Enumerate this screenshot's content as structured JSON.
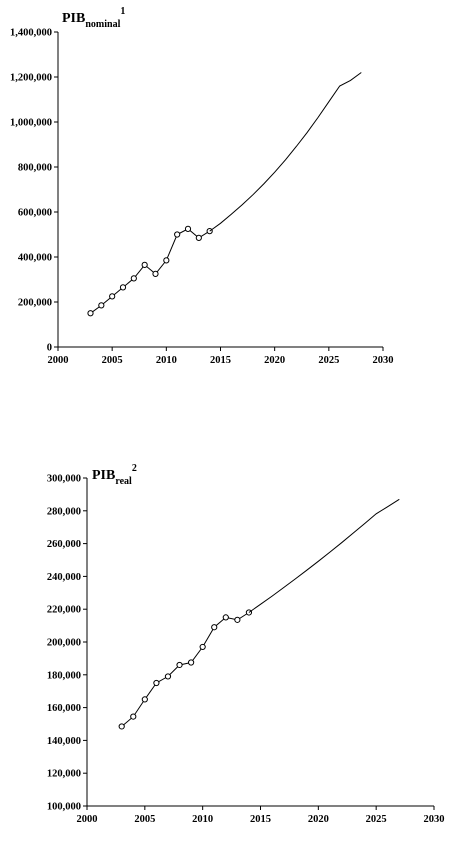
{
  "chart_data": [
    {
      "type": "line",
      "title": "PIB",
      "title_sub": "nominal",
      "title_sup": "1",
      "xlabel": "",
      "ylabel": "",
      "xlim": [
        2000,
        2030
      ],
      "ylim": [
        0,
        1400000
      ],
      "xticks": [
        2000,
        2005,
        2010,
        2015,
        2020,
        2025,
        2030
      ],
      "yticks": [
        0,
        200000,
        400000,
        600000,
        800000,
        1000000,
        1200000,
        1400000
      ],
      "xtick_labels": [
        "2000",
        "2005",
        "2010",
        "2015",
        "2020",
        "2025",
        "2030"
      ],
      "ytick_labels": [
        "0",
        "200,000",
        "400,000",
        "600,000",
        "800,000",
        "1,000,000",
        "1,200,000",
        "1,400,000"
      ],
      "grid": false,
      "series": [
        {
          "style": "line with open circle markers",
          "x": [
            2003,
            2004,
            2005,
            2006,
            2007,
            2008,
            2009,
            2010,
            2011,
            2012,
            2013,
            2014
          ],
          "y": [
            150000,
            185000,
            225000,
            265000,
            305000,
            365000,
            325000,
            385000,
            500000,
            525000,
            485000,
            515000
          ]
        },
        {
          "style": "line",
          "x": [
            2014,
            2015,
            2016,
            2017,
            2018,
            2019,
            2020,
            2021,
            2022,
            2023,
            2024,
            2025,
            2026,
            2027,
            2028
          ],
          "y": [
            515000,
            550000,
            590000,
            632000,
            677000,
            725000,
            777000,
            832000,
            891000,
            954000,
            1020000,
            1090000,
            1160000,
            1185000,
            1220000
          ]
        }
      ]
    },
    {
      "type": "line",
      "title": "PIB",
      "title_sub": "real",
      "title_sup": "2",
      "xlabel": "",
      "ylabel": "",
      "xlim": [
        2000,
        2030
      ],
      "ylim": [
        100000,
        300000
      ],
      "xticks": [
        2000,
        2005,
        2010,
        2015,
        2020,
        2025,
        2030
      ],
      "yticks": [
        100000,
        120000,
        140000,
        160000,
        180000,
        200000,
        220000,
        240000,
        260000,
        280000,
        300000
      ],
      "xtick_labels": [
        "2000",
        "2005",
        "2010",
        "2015",
        "2020",
        "2025",
        "2030"
      ],
      "ytick_labels": [
        "100,000",
        "120,000",
        "140,000",
        "160,000",
        "180,000",
        "200,000",
        "220,000",
        "240,000",
        "260,000",
        "280,000",
        "300,000"
      ],
      "grid": false,
      "series": [
        {
          "style": "line with open circle markers",
          "x": [
            2003,
            2004,
            2005,
            2006,
            2007,
            2008,
            2009,
            2010,
            2011,
            2012,
            2013,
            2014
          ],
          "y": [
            148500,
            154500,
            165000,
            175000,
            179000,
            186000,
            187500,
            197000,
            209000,
            215000,
            213500,
            218000
          ]
        },
        {
          "style": "line",
          "x": [
            2014,
            2015,
            2016,
            2017,
            2018,
            2019,
            2020,
            2021,
            2022,
            2023,
            2024,
            2025,
            2026,
            2027
          ],
          "y": [
            218000,
            223000,
            228000,
            233200,
            238400,
            243800,
            249200,
            254800,
            260500,
            266300,
            272200,
            278200,
            282500,
            287000
          ]
        }
      ]
    }
  ]
}
